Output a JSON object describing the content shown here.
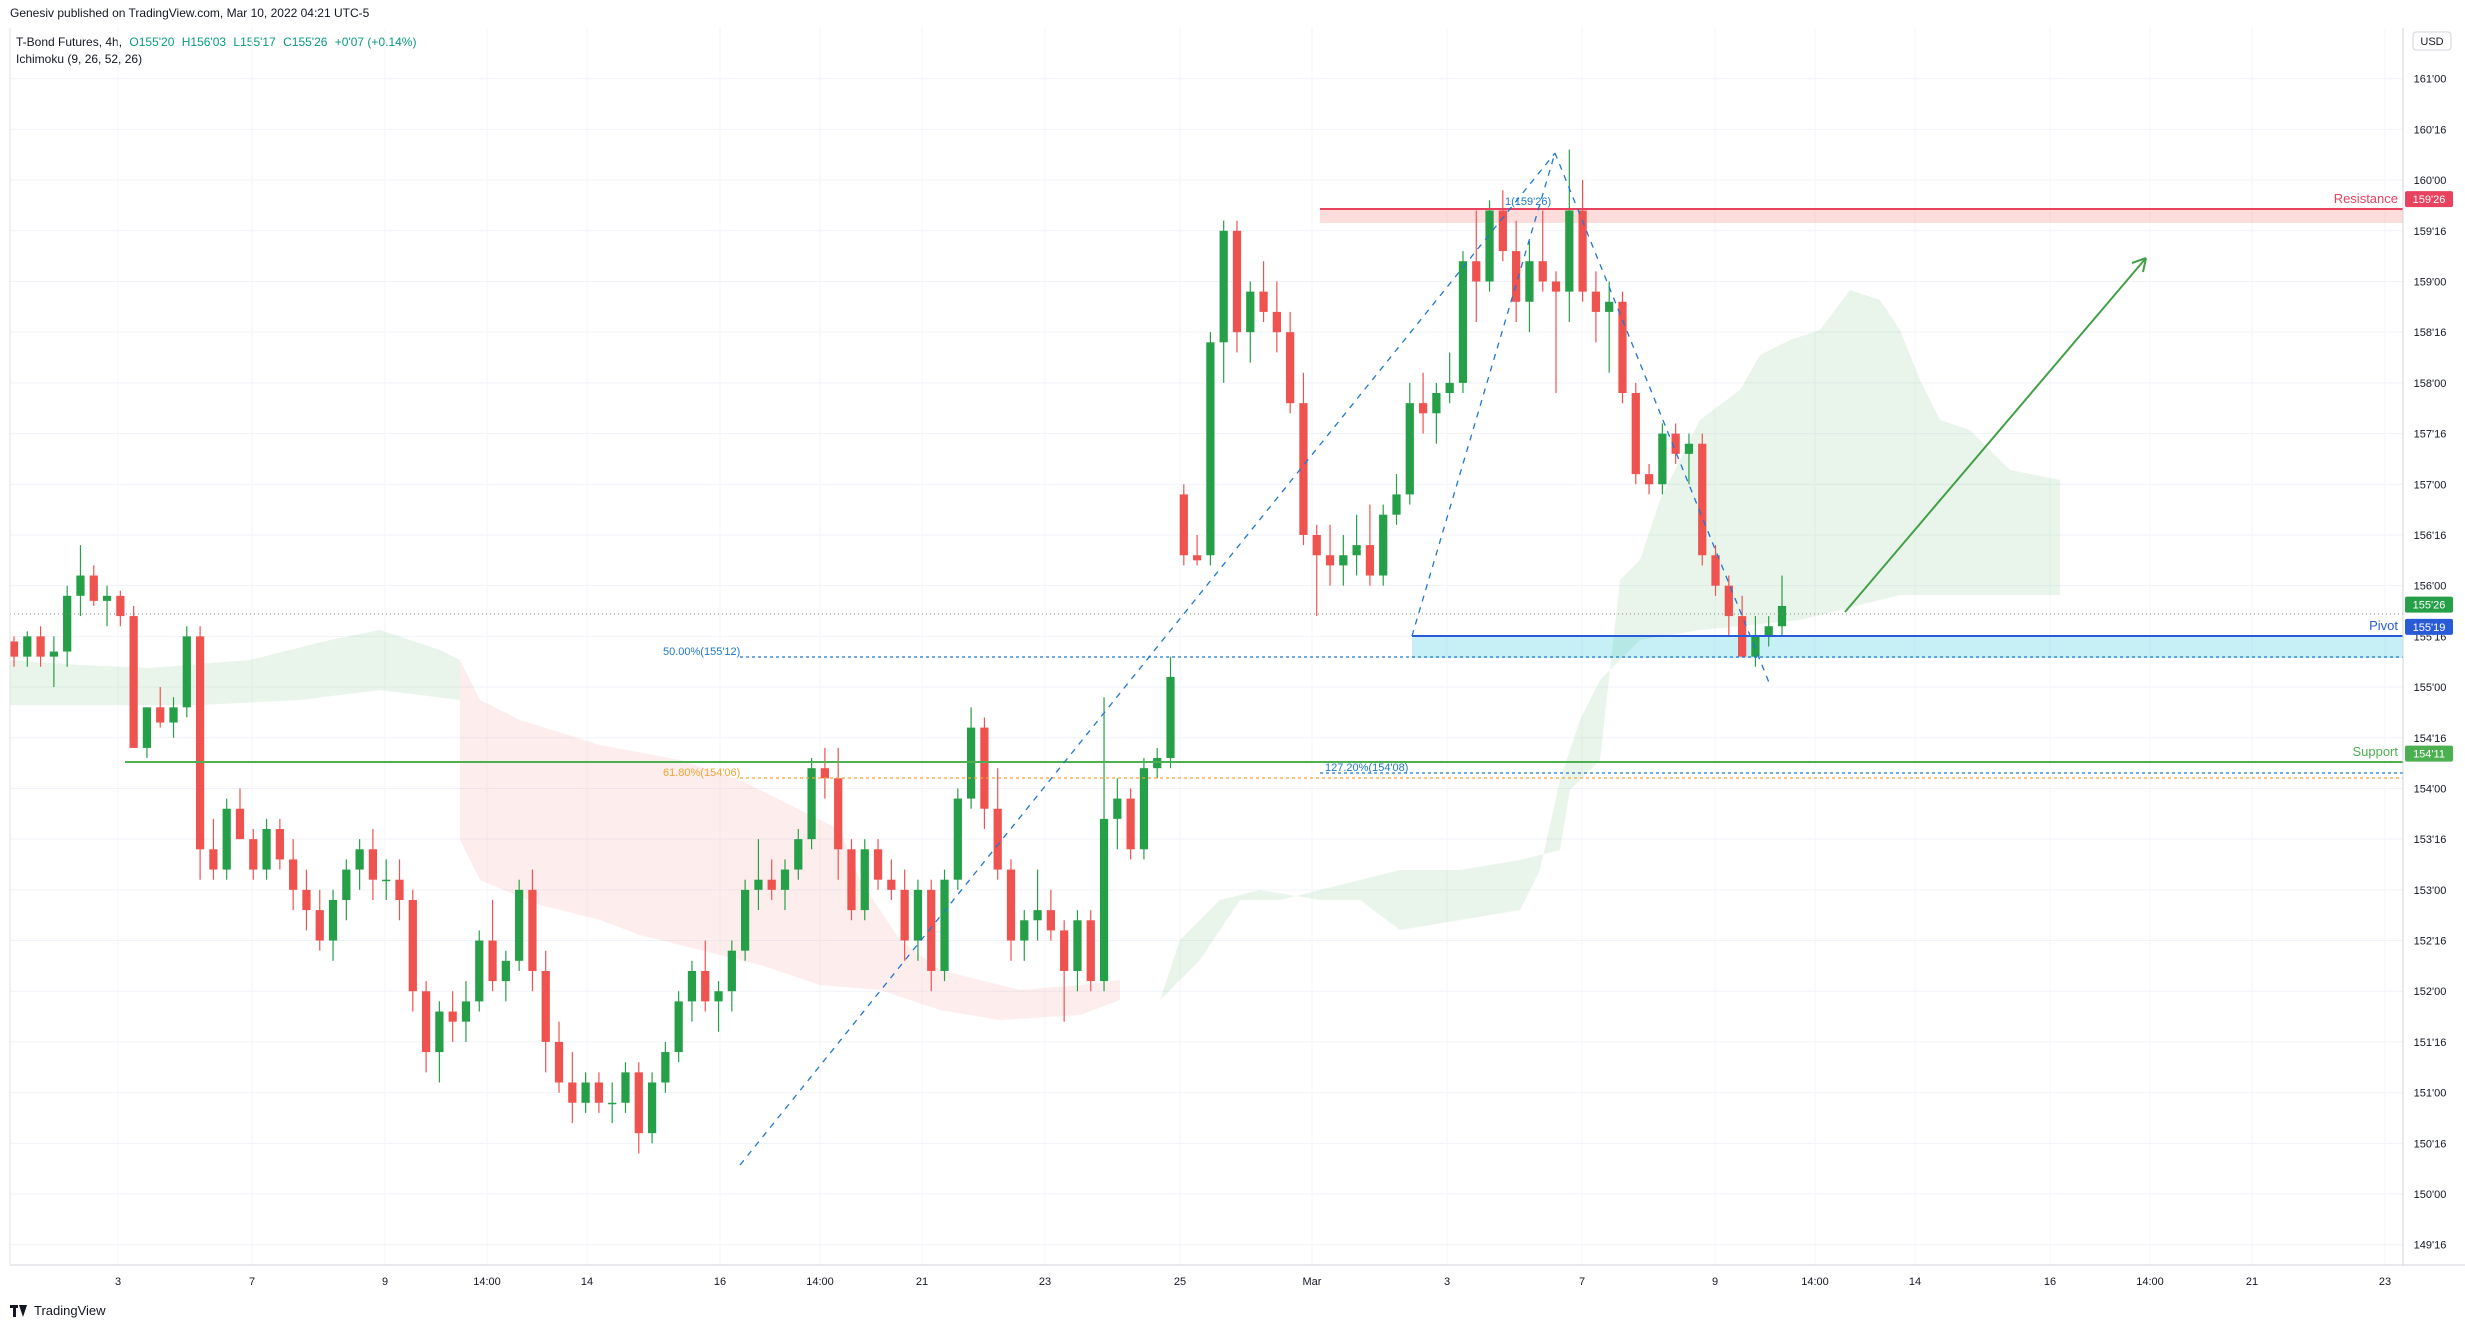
{
  "header": {
    "published_line": "Genesiv published on TradingView.com, Mar 10, 2022 04:21 UTC-5"
  },
  "legend": {
    "symbol": "T-Bond Futures, 4h,",
    "open": "O155'20",
    "high": "H156'03",
    "low": "L155'17",
    "close": "C155'26",
    "change": "+0'07 (+0.14%)",
    "indicator": "Ichimoku (9, 26, 52, 26)"
  },
  "footer": {
    "brand": "TradingView"
  },
  "colors": {
    "up": "#26a048",
    "down": "#ef5350",
    "resistance": "#e8425e",
    "pivot": "#2a5bd7",
    "support": "#4caf50",
    "fib": "#1f77d0",
    "fib618": "#f7a233"
  },
  "chart_data": {
    "type": "candlestick",
    "currency": "USD",
    "y_ticks": [
      "161'00",
      "160'16",
      "160'00",
      "159'16",
      "159'00",
      "158'16",
      "158'00",
      "157'16",
      "157'00",
      "156'16",
      "156'00",
      "155'16",
      "155'00",
      "154'16",
      "154'00",
      "153'16",
      "153'00",
      "152'16",
      "152'00",
      "151'16",
      "151'00",
      "150'16",
      "150'00",
      "149'16"
    ],
    "ylim": [
      149.3,
      161.5
    ],
    "x_ticks": [
      "3",
      "7",
      "9",
      "14:00",
      "14",
      "16",
      "14:00",
      "21",
      "23",
      "25",
      "Mar",
      "3",
      "7",
      "9",
      "14:00",
      "14",
      "16",
      "14:00",
      "21",
      "23"
    ],
    "levels": [
      {
        "name": "Resistance",
        "value": 159.8125,
        "price_label": "159'26"
      },
      {
        "name": "Pivot",
        "value": 155.59375,
        "price_label": "155'19"
      },
      {
        "name": "Support",
        "value": 154.34375,
        "price_label": "154'11"
      }
    ],
    "last_price": {
      "value": 155.8125,
      "price_label": "155'26"
    },
    "fib_labels": [
      {
        "text": "50.00%(155'12)",
        "value": 155.375
      },
      {
        "text": "61.80%(154'06)",
        "value": 154.1875
      },
      {
        "text": "127.20%(154'08)",
        "value": 154.25
      },
      {
        "text": "1(159'26)",
        "value": 159.8125
      }
    ],
    "candles": [
      [
        155.45,
        155.5,
        155.2,
        155.3
      ],
      [
        155.3,
        155.55,
        155.2,
        155.5
      ],
      [
        155.5,
        155.6,
        155.2,
        155.3
      ],
      [
        155.3,
        155.5,
        155.0,
        155.35
      ],
      [
        155.35,
        156.0,
        155.2,
        155.9
      ],
      [
        155.9,
        156.4,
        155.7,
        156.1
      ],
      [
        156.1,
        156.2,
        155.8,
        155.85
      ],
      [
        155.85,
        156.0,
        155.6,
        155.9
      ],
      [
        155.9,
        155.95,
        155.6,
        155.7
      ],
      [
        155.7,
        155.8,
        154.4,
        154.4
      ],
      [
        154.4,
        154.8,
        154.3,
        154.8
      ],
      [
        154.8,
        155.0,
        154.6,
        154.65
      ],
      [
        154.65,
        154.9,
        154.5,
        154.8
      ],
      [
        154.8,
        155.6,
        154.7,
        155.5
      ],
      [
        155.5,
        155.6,
        153.1,
        153.4
      ],
      [
        153.4,
        153.7,
        153.1,
        153.2
      ],
      [
        153.2,
        153.9,
        153.1,
        153.8
      ],
      [
        153.8,
        154.0,
        153.5,
        153.5
      ],
      [
        153.5,
        153.6,
        153.1,
        153.2
      ],
      [
        153.2,
        153.7,
        153.1,
        153.6
      ],
      [
        153.6,
        153.7,
        153.2,
        153.3
      ],
      [
        153.3,
        153.5,
        152.8,
        153.0
      ],
      [
        153.0,
        153.2,
        152.6,
        152.8
      ],
      [
        152.8,
        153.0,
        152.4,
        152.5
      ],
      [
        152.5,
        153.0,
        152.3,
        152.9
      ],
      [
        152.9,
        153.3,
        152.7,
        153.2
      ],
      [
        153.2,
        153.5,
        153.0,
        153.4
      ],
      [
        153.4,
        153.6,
        152.9,
        153.1
      ],
      [
        153.1,
        153.3,
        152.9,
        153.1
      ],
      [
        153.1,
        153.3,
        152.7,
        152.9
      ],
      [
        152.9,
        153.0,
        151.8,
        152.0
      ],
      [
        152.0,
        152.1,
        151.2,
        151.4
      ],
      [
        151.4,
        151.9,
        151.1,
        151.8
      ],
      [
        151.8,
        152.0,
        151.5,
        151.7
      ],
      [
        151.7,
        152.1,
        151.5,
        151.9
      ],
      [
        151.9,
        152.6,
        151.8,
        152.5
      ],
      [
        152.5,
        152.9,
        152.0,
        152.1
      ],
      [
        152.1,
        152.4,
        151.9,
        152.3
      ],
      [
        152.3,
        153.1,
        152.2,
        153.0
      ],
      [
        153.0,
        153.2,
        152.0,
        152.2
      ],
      [
        152.2,
        152.4,
        151.2,
        151.5
      ],
      [
        151.5,
        151.7,
        151.0,
        151.1
      ],
      [
        151.1,
        151.4,
        150.7,
        150.9
      ],
      [
        150.9,
        151.2,
        150.8,
        151.1
      ],
      [
        151.1,
        151.2,
        150.8,
        150.9
      ],
      [
        150.9,
        151.1,
        150.7,
        150.9
      ],
      [
        150.9,
        151.3,
        150.8,
        151.2
      ],
      [
        151.2,
        151.3,
        150.4,
        150.6
      ],
      [
        150.6,
        151.2,
        150.5,
        151.1
      ],
      [
        151.1,
        151.5,
        151.0,
        151.4
      ],
      [
        151.4,
        152.0,
        151.3,
        151.9
      ],
      [
        151.9,
        152.3,
        151.7,
        152.2
      ],
      [
        152.2,
        152.5,
        151.8,
        151.9
      ],
      [
        151.9,
        152.1,
        151.6,
        152.0
      ],
      [
        152.0,
        152.5,
        151.8,
        152.4
      ],
      [
        152.4,
        153.1,
        152.3,
        153.0
      ],
      [
        153.0,
        153.5,
        152.8,
        153.1
      ],
      [
        153.1,
        153.3,
        152.9,
        153.0
      ],
      [
        153.0,
        153.3,
        152.8,
        153.2
      ],
      [
        153.2,
        153.6,
        153.1,
        153.5
      ],
      [
        153.5,
        154.3,
        153.4,
        154.2
      ],
      [
        154.2,
        154.4,
        153.9,
        154.1
      ],
      [
        154.1,
        154.4,
        153.1,
        153.4
      ],
      [
        153.4,
        153.5,
        152.7,
        152.8
      ],
      [
        152.8,
        153.5,
        152.7,
        153.4
      ],
      [
        153.4,
        153.5,
        153.0,
        153.1
      ],
      [
        153.1,
        153.3,
        152.9,
        153.0
      ],
      [
        153.0,
        153.2,
        152.3,
        152.5
      ],
      [
        152.5,
        153.1,
        152.3,
        153.0
      ],
      [
        153.0,
        153.1,
        152.0,
        152.2
      ],
      [
        152.2,
        153.2,
        152.1,
        153.1
      ],
      [
        153.1,
        154.0,
        153.0,
        153.9
      ],
      [
        153.9,
        154.8,
        153.8,
        154.6
      ],
      [
        154.6,
        154.7,
        153.6,
        153.8
      ],
      [
        153.8,
        154.2,
        153.1,
        153.2
      ],
      [
        153.2,
        153.3,
        152.3,
        152.5
      ],
      [
        152.5,
        152.8,
        152.3,
        152.7
      ],
      [
        152.7,
        153.2,
        152.5,
        152.8
      ],
      [
        152.8,
        153.0,
        152.5,
        152.6
      ],
      [
        152.6,
        152.7,
        151.7,
        152.2
      ],
      [
        152.2,
        152.8,
        152.0,
        152.7
      ],
      [
        152.7,
        152.8,
        152.0,
        152.1
      ],
      [
        152.1,
        154.9,
        152.0,
        153.7
      ],
      [
        153.7,
        154.1,
        153.4,
        153.9
      ],
      [
        153.9,
        154.0,
        153.3,
        153.4
      ],
      [
        153.4,
        154.3,
        153.3,
        154.2
      ],
      [
        154.2,
        154.4,
        154.1,
        154.3
      ],
      [
        154.3,
        155.3,
        154.2,
        155.1
      ],
      [
        156.9,
        157.0,
        156.2,
        156.3
      ],
      [
        156.3,
        156.5,
        156.2,
        156.25
      ],
      [
        156.3,
        158.5,
        156.2,
        158.4
      ],
      [
        158.4,
        159.6,
        158.0,
        159.5
      ],
      [
        159.5,
        159.6,
        158.3,
        158.5
      ],
      [
        158.5,
        159.0,
        158.2,
        158.9
      ],
      [
        158.9,
        159.2,
        158.6,
        158.7
      ],
      [
        158.7,
        159.0,
        158.3,
        158.5
      ],
      [
        158.5,
        158.7,
        157.7,
        157.8
      ],
      [
        157.8,
        158.1,
        156.4,
        156.5
      ],
      [
        156.5,
        156.6,
        155.7,
        156.3
      ],
      [
        156.3,
        156.6,
        156.0,
        156.2
      ],
      [
        156.2,
        156.5,
        156.0,
        156.3
      ],
      [
        156.3,
        156.7,
        156.1,
        156.4
      ],
      [
        156.4,
        156.8,
        156.0,
        156.1
      ],
      [
        156.1,
        156.8,
        156.0,
        156.7
      ],
      [
        156.7,
        157.1,
        156.6,
        156.9
      ],
      [
        156.9,
        158.0,
        156.8,
        157.8
      ],
      [
        157.8,
        158.1,
        157.5,
        157.7
      ],
      [
        157.7,
        158.0,
        157.4,
        157.9
      ],
      [
        157.9,
        158.3,
        157.8,
        158.0
      ],
      [
        158.0,
        159.3,
        157.9,
        159.2
      ],
      [
        159.2,
        159.7,
        158.6,
        159.0
      ],
      [
        159.0,
        159.8,
        158.9,
        159.7
      ],
      [
        159.7,
        159.9,
        159.2,
        159.3
      ],
      [
        159.3,
        159.6,
        158.6,
        158.8
      ],
      [
        158.8,
        159.4,
        158.5,
        159.2
      ],
      [
        159.2,
        159.7,
        158.9,
        159.0
      ],
      [
        159.0,
        159.1,
        157.9,
        158.9
      ],
      [
        158.9,
        160.3,
        158.6,
        159.7
      ],
      [
        159.7,
        160.0,
        158.8,
        158.9
      ],
      [
        158.9,
        159.1,
        158.4,
        158.7
      ],
      [
        158.7,
        159.0,
        158.1,
        158.8
      ],
      [
        158.8,
        158.9,
        157.8,
        157.9
      ],
      [
        157.9,
        158.0,
        157.0,
        157.1
      ],
      [
        157.1,
        157.2,
        156.9,
        157.0
      ],
      [
        157.0,
        157.6,
        156.9,
        157.5
      ],
      [
        157.5,
        157.6,
        157.2,
        157.3
      ],
      [
        157.3,
        157.5,
        157.0,
        157.4
      ],
      [
        157.4,
        157.5,
        156.2,
        156.3
      ],
      [
        156.3,
        156.4,
        155.9,
        156.0
      ],
      [
        156.0,
        156.1,
        155.5,
        155.7
      ],
      [
        155.7,
        155.9,
        155.3,
        155.3
      ],
      [
        155.3,
        155.7,
        155.2,
        155.5
      ],
      [
        155.5,
        155.7,
        155.4,
        155.6
      ],
      [
        155.6,
        156.1,
        155.5,
        155.8
      ]
    ]
  }
}
